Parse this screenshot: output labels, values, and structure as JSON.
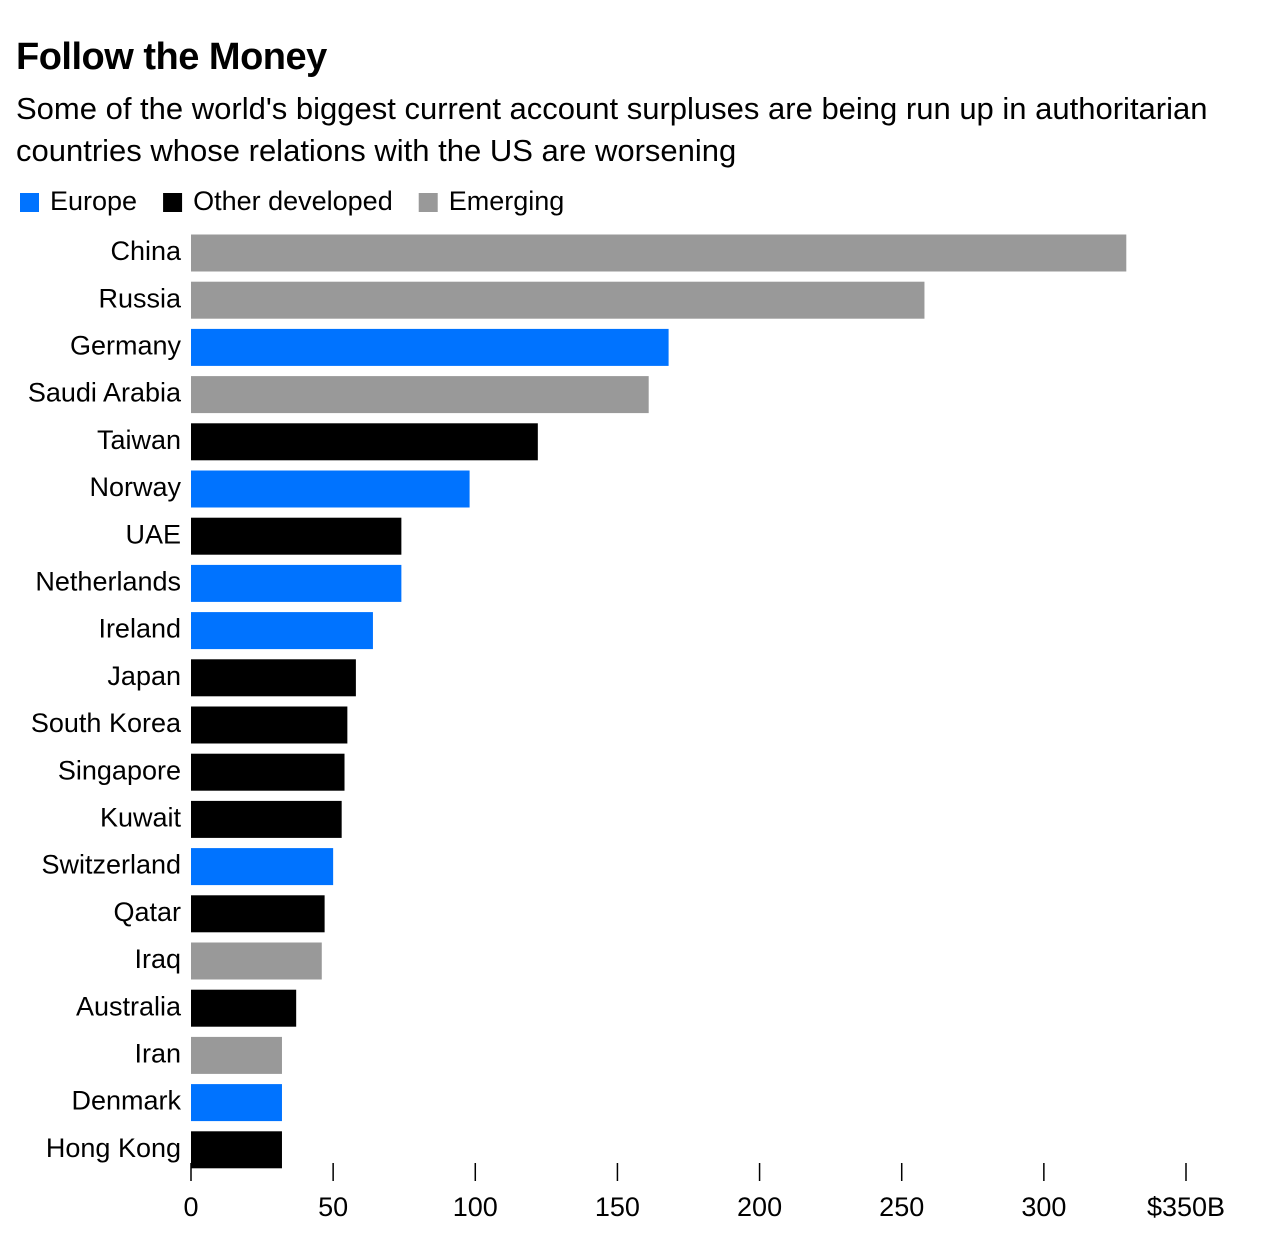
{
  "chart_data": {
    "type": "hbar",
    "title": "Follow the Money",
    "subtitle": "Some of the world's biggest current account surpluses are being run up in authoritarian countries whose relations with the US are worsening",
    "categories": [
      "China",
      "Russia",
      "Germany",
      "Saudi Arabia",
      "Taiwan",
      "Norway",
      "UAE",
      "Netherlands",
      "Ireland",
      "Japan",
      "South Korea",
      "Singapore",
      "Kuwait",
      "Switzerland",
      "Qatar",
      "Iraq",
      "Australia",
      "Iran",
      "Denmark",
      "Hong Kong"
    ],
    "series": [
      {
        "name": "Europe",
        "color": "#0073ff",
        "values": [
          null,
          null,
          168,
          null,
          null,
          98,
          null,
          74,
          64,
          null,
          null,
          null,
          null,
          50,
          null,
          null,
          null,
          null,
          32,
          null
        ]
      },
      {
        "name": "Other developed",
        "color": "#000000",
        "values": [
          null,
          null,
          null,
          null,
          122,
          null,
          74,
          null,
          null,
          58,
          55,
          54,
          53,
          null,
          47,
          null,
          37,
          null,
          null,
          32
        ]
      },
      {
        "name": "Emerging",
        "color": "#999999",
        "values": [
          329,
          258,
          null,
          161,
          null,
          null,
          null,
          null,
          null,
          null,
          null,
          null,
          null,
          null,
          null,
          46,
          null,
          32,
          null,
          null
        ]
      }
    ],
    "xlim": [
      0,
      350
    ],
    "xticks": [
      0,
      50,
      100,
      150,
      200,
      250,
      300,
      {
        "value": 350,
        "label": "$350B"
      }
    ]
  }
}
